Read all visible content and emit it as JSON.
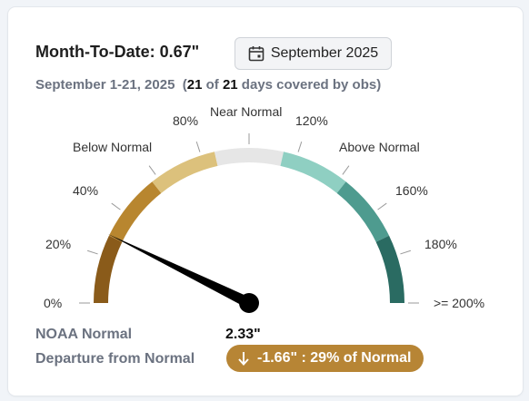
{
  "header": {
    "mtd_label": "Month-To-Date:",
    "mtd_value": "0.67\"",
    "month_button": "September 2025",
    "month_icon": "calendar-icon"
  },
  "coverage": {
    "range": "September 1-21, 2025",
    "open": "(",
    "covered": "21",
    "of": " of ",
    "total": "21",
    "suffix": " days covered by obs)"
  },
  "gauge": {
    "percent_of_normal": 29,
    "min_percent": 0,
    "max_percent": 200,
    "labels": {
      "p0": "0%",
      "p20": "20%",
      "p40": "40%",
      "below": "Below Normal",
      "p80": "80%",
      "near": "Near Normal",
      "p120": "120%",
      "above": "Above Normal",
      "p160": "160%",
      "p180": "180%",
      "p200": ">= 200%"
    },
    "colors": [
      "#8a5b1a",
      "#b8862f",
      "#dcc17c",
      "#e6e6e6",
      "#8fcfc2",
      "#4e9b8f",
      "#2a6b62"
    ],
    "needle_color": "#000000"
  },
  "stats": {
    "normal_label": "NOAA Normal",
    "normal_value": "2.33\"",
    "departure_label": "Departure from Normal",
    "departure_value": "-1.66\" : 29% of Normal",
    "departure_icon": "arrow-down-icon",
    "departure_color": "#b78535"
  }
}
